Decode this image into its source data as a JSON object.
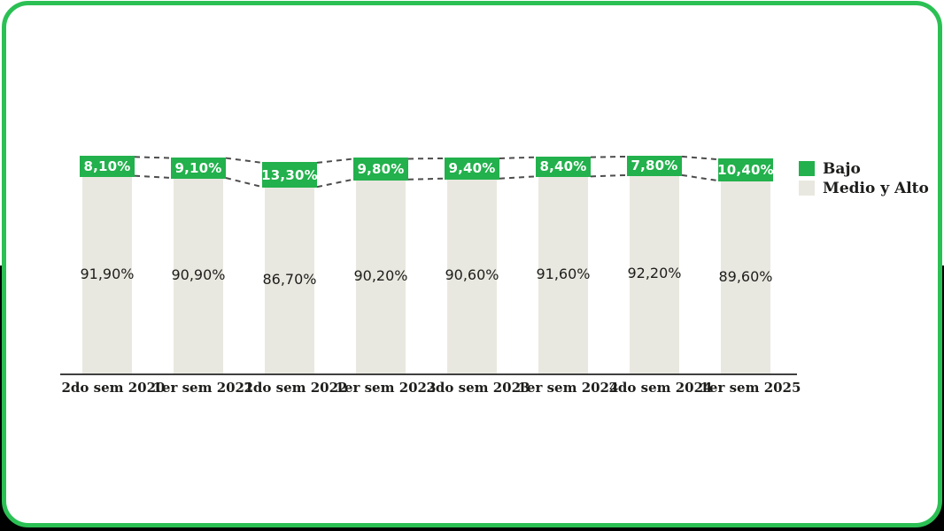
{
  "chart_data": {
    "type": "bar",
    "stacked": true,
    "unit": "%",
    "ylim": [
      0,
      100
    ],
    "grid": false,
    "legend_position": "right",
    "categories": [
      "2do sem 2020",
      "1er sem 2021",
      "2do sem 2022",
      "1er sem 2023",
      "2do sem 2023",
      "1er sem 2024",
      "2do sem 2024",
      "1er sem 2025"
    ],
    "series": [
      {
        "name": "Bajo",
        "color": "#22b14c",
        "values": [
          8.1,
          9.1,
          13.3,
          9.8,
          9.4,
          8.4,
          7.8,
          10.4
        ],
        "labels": [
          "8,10%",
          "9,10%",
          "13,30%",
          "9,80%",
          "9,40%",
          "8,40%",
          "7,80%",
          "10,40%"
        ]
      },
      {
        "name": "Medio y Alto",
        "color": "#e9e8e0",
        "values": [
          91.9,
          90.9,
          86.7,
          90.2,
          90.6,
          91.6,
          92.2,
          89.6
        ],
        "labels": [
          "91,90%",
          "90,90%",
          "86,70%",
          "90,20%",
          "90,60%",
          "91,60%",
          "92,20%",
          "89,60%"
        ]
      }
    ]
  },
  "legend": {
    "items": [
      {
        "label": "Bajo",
        "color": "#22b14c"
      },
      {
        "label": "Medio y Alto",
        "color": "#e9e8e0"
      }
    ]
  },
  "colors": {
    "bajo": "#22b14c",
    "medio": "#e9e8e0",
    "card_border": "#2bc054",
    "dash_line": "#4d4d4d",
    "axis_line": "#3f3f3f",
    "text_dark": "#1d1d1b",
    "bajo_label_text": "#ffffff"
  }
}
